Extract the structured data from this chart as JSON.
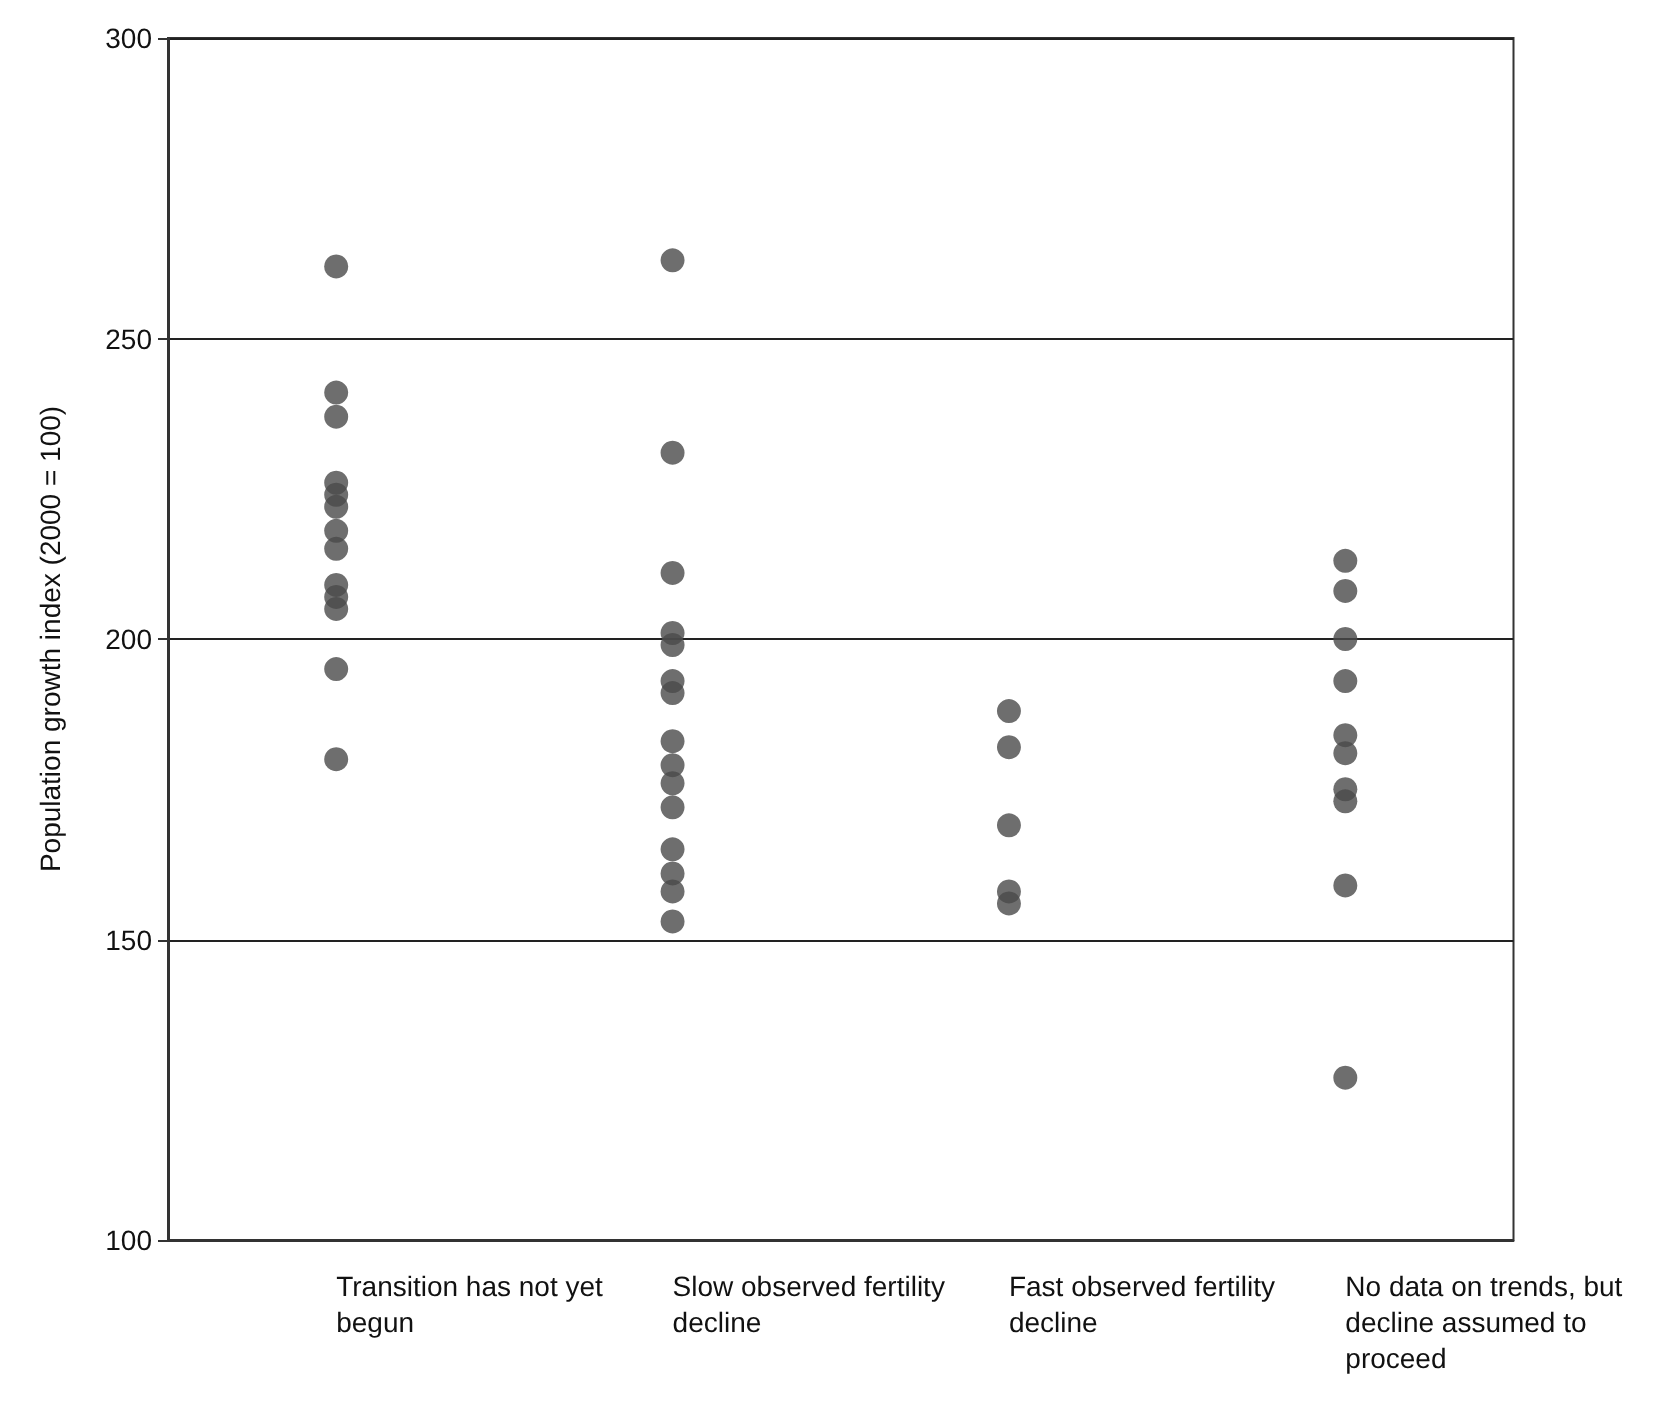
{
  "chart_data": {
    "type": "scatter",
    "ylabel": "Population growth index (2000 = 100)",
    "categories": [
      "Transition has not yet begun",
      "Slow observed fertility decline",
      "Fast observed fertility decline",
      "No data on trends, but decline assumed to proceed"
    ],
    "series": [
      {
        "color": "#4a4a4a",
        "x": [
          "Transition has not yet begun",
          "Transition has not yet begun",
          "Transition has not yet begun",
          "Transition has not yet begun",
          "Transition has not yet begun",
          "Transition has not yet begun",
          "Transition has not yet begun",
          "Transition has not yet begun",
          "Transition has not yet begun",
          "Transition has not yet begun",
          "Transition has not yet begun",
          "Transition has not yet begun",
          "Transition has not yet begun",
          "Slow observed fertility decline",
          "Slow observed fertility decline",
          "Slow observed fertility decline",
          "Slow observed fertility decline",
          "Slow observed fertility decline",
          "Slow observed fertility decline",
          "Slow observed fertility decline",
          "Slow observed fertility decline",
          "Slow observed fertility decline",
          "Slow observed fertility decline",
          "Slow observed fertility decline",
          "Slow observed fertility decline",
          "Slow observed fertility decline",
          "Slow observed fertility decline",
          "Slow observed fertility decline",
          "Fast observed fertility decline",
          "Fast observed fertility decline",
          "Fast observed fertility decline",
          "Fast observed fertility decline",
          "Fast observed fertility decline",
          "No data on trends, but decline assumed to proceed",
          "No data on trends, but decline assumed to proceed",
          "No data on trends, but decline assumed to proceed",
          "No data on trends, but decline assumed to proceed",
          "No data on trends, but decline assumed to proceed",
          "No data on trends, but decline assumed to proceed",
          "No data on trends, but decline assumed to proceed",
          "No data on trends, but decline assumed to proceed",
          "No data on trends, but decline assumed to proceed",
          "No data on trends, but decline assumed to proceed"
        ],
        "values": [
          262,
          241,
          237,
          226,
          224,
          222,
          218,
          215,
          209,
          207,
          205,
          195,
          180,
          263,
          231,
          211,
          201,
          199,
          193,
          191,
          183,
          179,
          176,
          172,
          165,
          161,
          158,
          153,
          188,
          182,
          169,
          158,
          156,
          213,
          208,
          200,
          193,
          184,
          181,
          175,
          173,
          159,
          127
        ]
      }
    ],
    "ylim": [
      100,
      300
    ],
    "yticks": [
      100,
      150,
      200,
      250,
      300
    ],
    "grid": "y",
    "marker": "circle"
  }
}
